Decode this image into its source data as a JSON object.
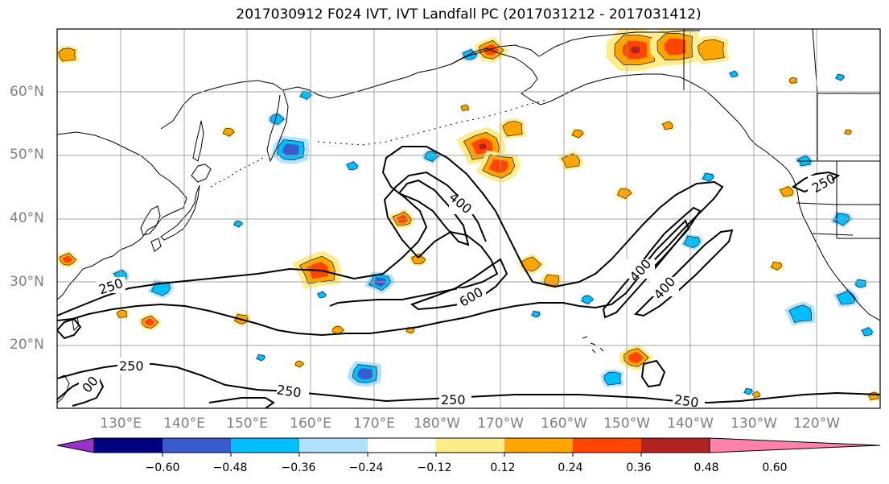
{
  "title": "2017030912 F024 IVT, IVT Landfall PC (2017031212 - 2017031412)",
  "lat_labels": [
    "60°N",
    "50°N",
    "40°N",
    "30°N",
    "20°N"
  ],
  "lon_labels": [
    "130°E",
    "140°E",
    "150°E",
    "160°E",
    "170°E",
    "180°W",
    "170°W",
    "160°W",
    "150°W",
    "140°W",
    "130°W",
    "120°W"
  ],
  "colorbar": {
    "colors": [
      "#9932cc",
      "#000080",
      "#3a5bcd",
      "#00bfff",
      "#b0e2ff",
      "#ffffff",
      "#ffec8b",
      "#ffa500",
      "#ff4500",
      "#b22222",
      "#ff82ab"
    ],
    "tick_labels": [
      "−0.60",
      "−0.48",
      "−0.36",
      "−0.24",
      "−0.12",
      "0.12",
      "0.24",
      "0.36",
      "0.48",
      "0.60"
    ]
  },
  "contour_labels": [
    "250",
    "400",
    "600",
    "400",
    "400",
    "250",
    "250",
    "250",
    "250",
    "250",
    "00"
  ],
  "colors": {
    "contour": "#000000",
    "grid": "#a0a0a0",
    "coast": "#000000",
    "axis_label": "#808080"
  }
}
